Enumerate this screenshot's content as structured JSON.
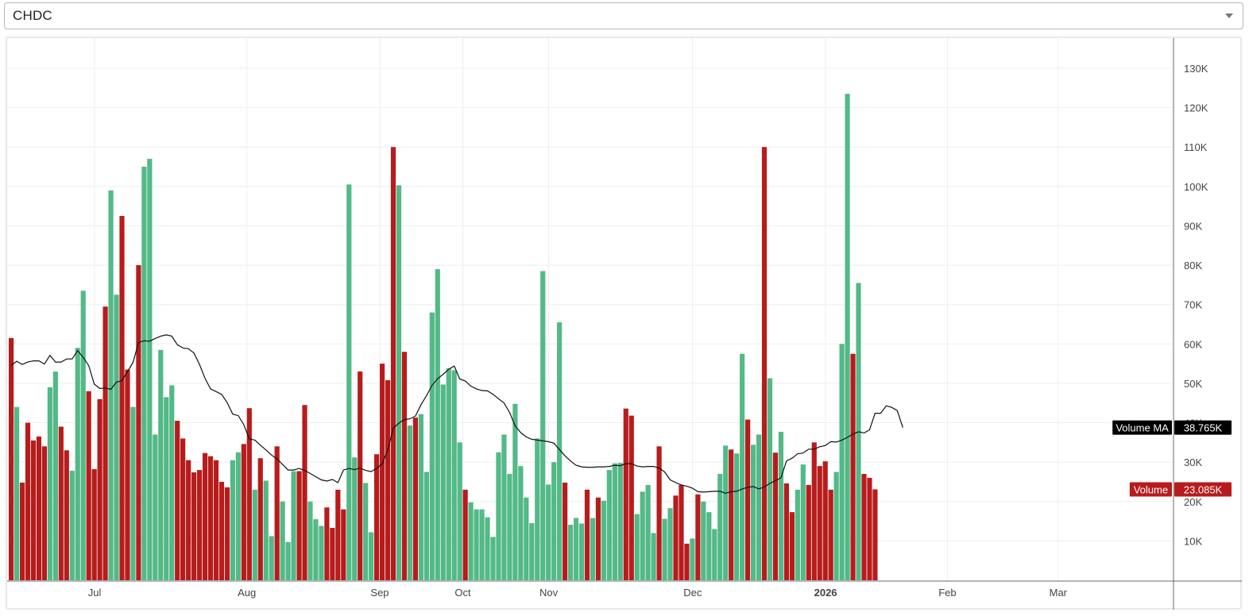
{
  "selector": {
    "value": "CHDC"
  },
  "colors": {
    "up": "#53b987",
    "down": "#b71c1c",
    "ma": "#111111",
    "grid": "#eeeeee",
    "axis_text": "#444444"
  },
  "chart_data": {
    "type": "bar",
    "ylim": [
      0,
      135000
    ],
    "y_ticks": [
      {
        "value": 10000,
        "label": "10K"
      },
      {
        "value": 20000,
        "label": "20K"
      },
      {
        "value": 30000,
        "label": "30K"
      },
      {
        "value": 40000,
        "label": "40K"
      },
      {
        "value": 50000,
        "label": "50K"
      },
      {
        "value": 60000,
        "label": "60K"
      },
      {
        "value": 70000,
        "label": "70K"
      },
      {
        "value": 80000,
        "label": "80K"
      },
      {
        "value": 90000,
        "label": "90K"
      },
      {
        "value": 100000,
        "label": "100K"
      },
      {
        "value": 110000,
        "label": "110K"
      },
      {
        "value": 120000,
        "label": "120K"
      },
      {
        "value": 130000,
        "label": "130K"
      }
    ],
    "x_ticks": [
      {
        "bar": 15.5,
        "label": "Jul",
        "bold": false
      },
      {
        "bar": 43,
        "label": "Aug",
        "bold": false
      },
      {
        "bar": 67,
        "label": "Sep",
        "bold": false
      },
      {
        "bar": 82,
        "label": "Oct",
        "bold": false
      },
      {
        "bar": 97.5,
        "label": "Nov",
        "bold": false
      },
      {
        "bar": 123.5,
        "label": "Dec",
        "bold": false
      },
      {
        "bar": 147.5,
        "label": "2026",
        "bold": true
      },
      {
        "bar": 169.5,
        "label": "Feb",
        "bold": false
      },
      {
        "bar": 189.5,
        "label": "Mar",
        "bold": false
      }
    ],
    "x_domain_bars": 211,
    "volumes": [
      61500,
      44000,
      24800,
      40000,
      35500,
      36500,
      34000,
      49000,
      53000,
      39000,
      33000,
      27800,
      59000,
      73500,
      48000,
      28200,
      46000,
      69500,
      99000,
      72500,
      92500,
      53500,
      44000,
      80000,
      105000,
      107000,
      37000,
      58500,
      46500,
      49500,
      40500,
      36000,
      30500,
      27400,
      28000,
      32300,
      31500,
      30500,
      25000,
      23600,
      30500,
      32500,
      34600,
      43700,
      23000,
      31000,
      25300,
      11200,
      34000,
      20000,
      9700,
      27700,
      27700,
      44500,
      20000,
      15500,
      13800,
      18500,
      13300,
      23000,
      18000,
      100500,
      31200,
      53000,
      24700,
      12200,
      32000,
      55000,
      50800,
      110000,
      100300,
      58000,
      39300,
      41300,
      42200,
      27500,
      68000,
      79000,
      49700,
      53800,
      53300,
      35000,
      23000,
      19800,
      18000,
      18000,
      16000,
      11000,
      32500,
      37000,
      27000,
      44800,
      29000,
      21000,
      14500,
      36000,
      78500,
      24300,
      30000,
      65500,
      24800,
      14100,
      15800,
      14400,
      23000,
      15800,
      21000,
      20200,
      28000,
      29700,
      29800,
      43600,
      41800,
      16800,
      22500,
      24200,
      12000,
      34000,
      15600,
      18300,
      21500,
      24200,
      9300,
      10600,
      21800,
      20000,
      17300,
      13000,
      27000,
      34200,
      33200,
      32200,
      57500,
      40800,
      34400,
      37000,
      110000,
      51300,
      32400,
      37700,
      24600,
      17300,
      23000,
      29400,
      24200,
      35000,
      29000,
      30200,
      23000,
      27500,
      60000,
      123500,
      57500,
      75500,
      27000,
      26000,
      23085
    ],
    "up": [
      false,
      true,
      false,
      false,
      false,
      false,
      false,
      true,
      true,
      false,
      false,
      true,
      true,
      true,
      false,
      false,
      false,
      false,
      true,
      true,
      false,
      false,
      true,
      false,
      true,
      true,
      true,
      true,
      true,
      true,
      false,
      false,
      false,
      false,
      false,
      false,
      false,
      false,
      false,
      false,
      true,
      true,
      false,
      false,
      true,
      false,
      true,
      true,
      false,
      true,
      true,
      true,
      false,
      false,
      true,
      true,
      true,
      false,
      false,
      false,
      false,
      true,
      true,
      false,
      true,
      true,
      false,
      false,
      false,
      false,
      true,
      false,
      true,
      false,
      true,
      true,
      true,
      true,
      true,
      true,
      true,
      true,
      false,
      true,
      true,
      true,
      true,
      true,
      true,
      true,
      true,
      true,
      true,
      true,
      true,
      true,
      true,
      true,
      true,
      true,
      false,
      true,
      true,
      true,
      false,
      true,
      false,
      true,
      true,
      true,
      true,
      false,
      false,
      true,
      true,
      true,
      true,
      false,
      true,
      true,
      false,
      false,
      false,
      true,
      false,
      true,
      true,
      true,
      true,
      true,
      false,
      true,
      true,
      false,
      true,
      true,
      false,
      true,
      false,
      true,
      false,
      false,
      true,
      true,
      false,
      false,
      false,
      false,
      false,
      true,
      true,
      true,
      false,
      true,
      false,
      false,
      false
    ],
    "ma": [
      54600,
      55600,
      54800,
      55400,
      55700,
      55700,
      54900,
      57100,
      55400,
      55400,
      56200,
      56200,
      58300,
      56600,
      54500,
      49800,
      48700,
      48800,
      48500,
      50300,
      50700,
      53000,
      55300,
      60400,
      60800,
      60700,
      61400,
      62000,
      62300,
      62000,
      59800,
      59000,
      58800,
      57700,
      54800,
      51300,
      48600,
      47900,
      47200,
      45100,
      42200,
      41800,
      39500,
      35900,
      35600,
      34300,
      33100,
      31800,
      30800,
      29400,
      28000,
      28000,
      28400,
      27900,
      27100,
      26300,
      25500,
      25200,
      25600,
      24800,
      28000,
      28400,
      28100,
      28500,
      27900,
      27600,
      28400,
      29600,
      33100,
      38600,
      39900,
      40800,
      41000,
      41700,
      44600,
      46900,
      49500,
      51200,
      52300,
      53600,
      54400,
      51100,
      50600,
      49300,
      48600,
      48200,
      48100,
      47200,
      46100,
      45000,
      42600,
      39200,
      37500,
      36400,
      35800,
      35600,
      35400,
      35200,
      34800,
      33200,
      31600,
      30300,
      29200,
      28800,
      28700,
      28700,
      28800,
      28800,
      28900,
      29200,
      29100,
      29600,
      29600,
      29000,
      28800,
      28900,
      28900,
      28500,
      27500,
      25500,
      24800,
      24200,
      23900,
      23400,
      22500,
      22400,
      22500,
      22600,
      22600,
      22100,
      22500,
      22600,
      23200,
      23600,
      23800,
      23200,
      23700,
      24600,
      25300,
      26000,
      30300,
      31000,
      32100,
      32300,
      33300,
      33300,
      33900,
      34200,
      35200,
      35100,
      35600,
      36300,
      37100,
      37700,
      37400,
      38200,
      42400,
      42400,
      44300,
      43900,
      43100,
      38765
    ],
    "ma_legend": {
      "label": "Volume MA",
      "value": "38.765K"
    },
    "vol_legend": {
      "label": "Volume",
      "value": "23.085K"
    }
  }
}
